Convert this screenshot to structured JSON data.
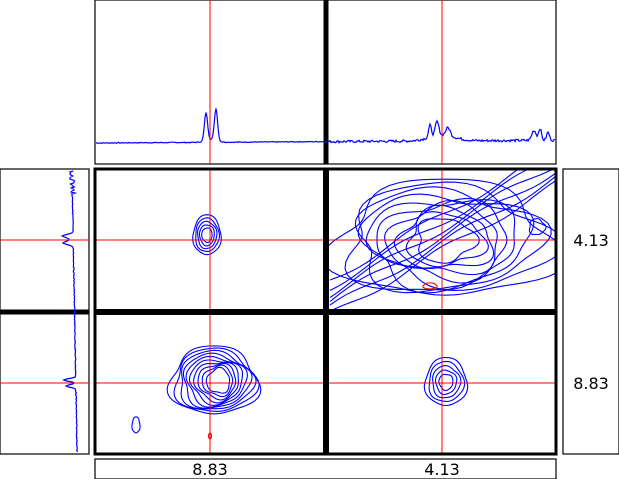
{
  "chart_data": {
    "type": "contour",
    "title": "",
    "description_free": true,
    "peaks_ppm": [
      8.83,
      4.13
    ],
    "x_tick_labels": [
      "8.83",
      "4.13"
    ],
    "y_tick_labels": [
      "4.13",
      "8.83"
    ],
    "crosshair_color": "#ff0000",
    "contour_color": "#0000ff",
    "negative_contour_color": "#ff0000",
    "grid": false,
    "legend": "none",
    "top_projection": {
      "peaks": [
        {
          "ppm": 8.83,
          "rel_height": 0.3,
          "shape": "doublet"
        },
        {
          "ppm": 4.13,
          "rel_height": 0.2,
          "shape": "multiplet"
        }
      ]
    },
    "left_projection": {
      "peaks": [
        {
          "ppm": 4.13,
          "rel_height": 0.15
        },
        {
          "ppm": 8.83,
          "rel_height": 0.15
        }
      ]
    },
    "panels": [
      {
        "x_ppm": 8.83,
        "y_ppm": 4.13,
        "type": "cross-peak",
        "levels": 5
      },
      {
        "x_ppm": 4.13,
        "y_ppm": 4.13,
        "type": "diagonal",
        "levels": 10
      },
      {
        "x_ppm": 8.83,
        "y_ppm": 8.83,
        "type": "diagonal",
        "levels": 10
      },
      {
        "x_ppm": 4.13,
        "y_ppm": 8.83,
        "type": "cross-peak",
        "levels": 4
      }
    ]
  }
}
